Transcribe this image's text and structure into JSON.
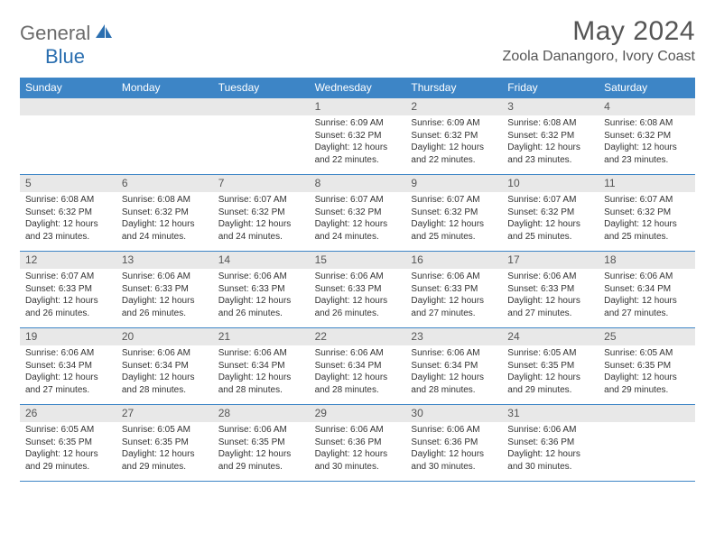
{
  "brand": {
    "part1": "General",
    "part2": "Blue"
  },
  "title": "May 2024",
  "location": "Zoola Danangoro, Ivory Coast",
  "colors": {
    "header_bg": "#3d85c6",
    "daynum_bg": "#e8e8e8",
    "text": "#333333",
    "title_text": "#555555",
    "brand_gray": "#6b6b6b",
    "brand_blue": "#2b6fb0",
    "row_border": "#3d85c6"
  },
  "weekdays": [
    "Sunday",
    "Monday",
    "Tuesday",
    "Wednesday",
    "Thursday",
    "Friday",
    "Saturday"
  ],
  "weeks": [
    [
      {
        "blank": true
      },
      {
        "blank": true
      },
      {
        "blank": true
      },
      {
        "n": "1",
        "sr": "6:09 AM",
        "ss": "6:32 PM",
        "dh": "12",
        "dm": "22"
      },
      {
        "n": "2",
        "sr": "6:09 AM",
        "ss": "6:32 PM",
        "dh": "12",
        "dm": "22"
      },
      {
        "n": "3",
        "sr": "6:08 AM",
        "ss": "6:32 PM",
        "dh": "12",
        "dm": "23"
      },
      {
        "n": "4",
        "sr": "6:08 AM",
        "ss": "6:32 PM",
        "dh": "12",
        "dm": "23"
      }
    ],
    [
      {
        "n": "5",
        "sr": "6:08 AM",
        "ss": "6:32 PM",
        "dh": "12",
        "dm": "23"
      },
      {
        "n": "6",
        "sr": "6:08 AM",
        "ss": "6:32 PM",
        "dh": "12",
        "dm": "24"
      },
      {
        "n": "7",
        "sr": "6:07 AM",
        "ss": "6:32 PM",
        "dh": "12",
        "dm": "24"
      },
      {
        "n": "8",
        "sr": "6:07 AM",
        "ss": "6:32 PM",
        "dh": "12",
        "dm": "24"
      },
      {
        "n": "9",
        "sr": "6:07 AM",
        "ss": "6:32 PM",
        "dh": "12",
        "dm": "25"
      },
      {
        "n": "10",
        "sr": "6:07 AM",
        "ss": "6:32 PM",
        "dh": "12",
        "dm": "25"
      },
      {
        "n": "11",
        "sr": "6:07 AM",
        "ss": "6:32 PM",
        "dh": "12",
        "dm": "25"
      }
    ],
    [
      {
        "n": "12",
        "sr": "6:07 AM",
        "ss": "6:33 PM",
        "dh": "12",
        "dm": "26"
      },
      {
        "n": "13",
        "sr": "6:06 AM",
        "ss": "6:33 PM",
        "dh": "12",
        "dm": "26"
      },
      {
        "n": "14",
        "sr": "6:06 AM",
        "ss": "6:33 PM",
        "dh": "12",
        "dm": "26"
      },
      {
        "n": "15",
        "sr": "6:06 AM",
        "ss": "6:33 PM",
        "dh": "12",
        "dm": "26"
      },
      {
        "n": "16",
        "sr": "6:06 AM",
        "ss": "6:33 PM",
        "dh": "12",
        "dm": "27"
      },
      {
        "n": "17",
        "sr": "6:06 AM",
        "ss": "6:33 PM",
        "dh": "12",
        "dm": "27"
      },
      {
        "n": "18",
        "sr": "6:06 AM",
        "ss": "6:34 PM",
        "dh": "12",
        "dm": "27"
      }
    ],
    [
      {
        "n": "19",
        "sr": "6:06 AM",
        "ss": "6:34 PM",
        "dh": "12",
        "dm": "27"
      },
      {
        "n": "20",
        "sr": "6:06 AM",
        "ss": "6:34 PM",
        "dh": "12",
        "dm": "28"
      },
      {
        "n": "21",
        "sr": "6:06 AM",
        "ss": "6:34 PM",
        "dh": "12",
        "dm": "28"
      },
      {
        "n": "22",
        "sr": "6:06 AM",
        "ss": "6:34 PM",
        "dh": "12",
        "dm": "28"
      },
      {
        "n": "23",
        "sr": "6:06 AM",
        "ss": "6:34 PM",
        "dh": "12",
        "dm": "28"
      },
      {
        "n": "24",
        "sr": "6:05 AM",
        "ss": "6:35 PM",
        "dh": "12",
        "dm": "29"
      },
      {
        "n": "25",
        "sr": "6:05 AM",
        "ss": "6:35 PM",
        "dh": "12",
        "dm": "29"
      }
    ],
    [
      {
        "n": "26",
        "sr": "6:05 AM",
        "ss": "6:35 PM",
        "dh": "12",
        "dm": "29"
      },
      {
        "n": "27",
        "sr": "6:05 AM",
        "ss": "6:35 PM",
        "dh": "12",
        "dm": "29"
      },
      {
        "n": "28",
        "sr": "6:06 AM",
        "ss": "6:35 PM",
        "dh": "12",
        "dm": "29"
      },
      {
        "n": "29",
        "sr": "6:06 AM",
        "ss": "6:36 PM",
        "dh": "12",
        "dm": "30"
      },
      {
        "n": "30",
        "sr": "6:06 AM",
        "ss": "6:36 PM",
        "dh": "12",
        "dm": "30"
      },
      {
        "n": "31",
        "sr": "6:06 AM",
        "ss": "6:36 PM",
        "dh": "12",
        "dm": "30"
      },
      {
        "blank": true
      }
    ]
  ],
  "labels": {
    "sunrise": "Sunrise:",
    "sunset": "Sunset:",
    "daylight_prefix": "Daylight:",
    "hours_word": "hours",
    "and_word": "and",
    "minutes_word": "minutes."
  }
}
